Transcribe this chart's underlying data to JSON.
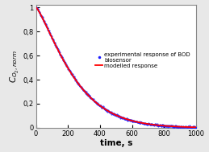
{
  "xlabel": "time, s",
  "xlim": [
    0,
    1000
  ],
  "ylim": [
    0,
    1.02
  ],
  "yticks": [
    0,
    0.2,
    0.4,
    0.6,
    0.8,
    1
  ],
  "xticks": [
    0,
    200,
    400,
    600,
    800,
    1000
  ],
  "weibull_beta": 1.27,
  "weibull_tau": 264.0,
  "experimental_color": "#1a1aff",
  "modelled_color": "#ff0000",
  "legend_dot_label": "experimental response of BOD\nbiosensor",
  "legend_line_label": "modelled response",
  "background_color": "#e8e8e8",
  "plot_bg_color": "#ffffff",
  "spine_color": "#888888"
}
